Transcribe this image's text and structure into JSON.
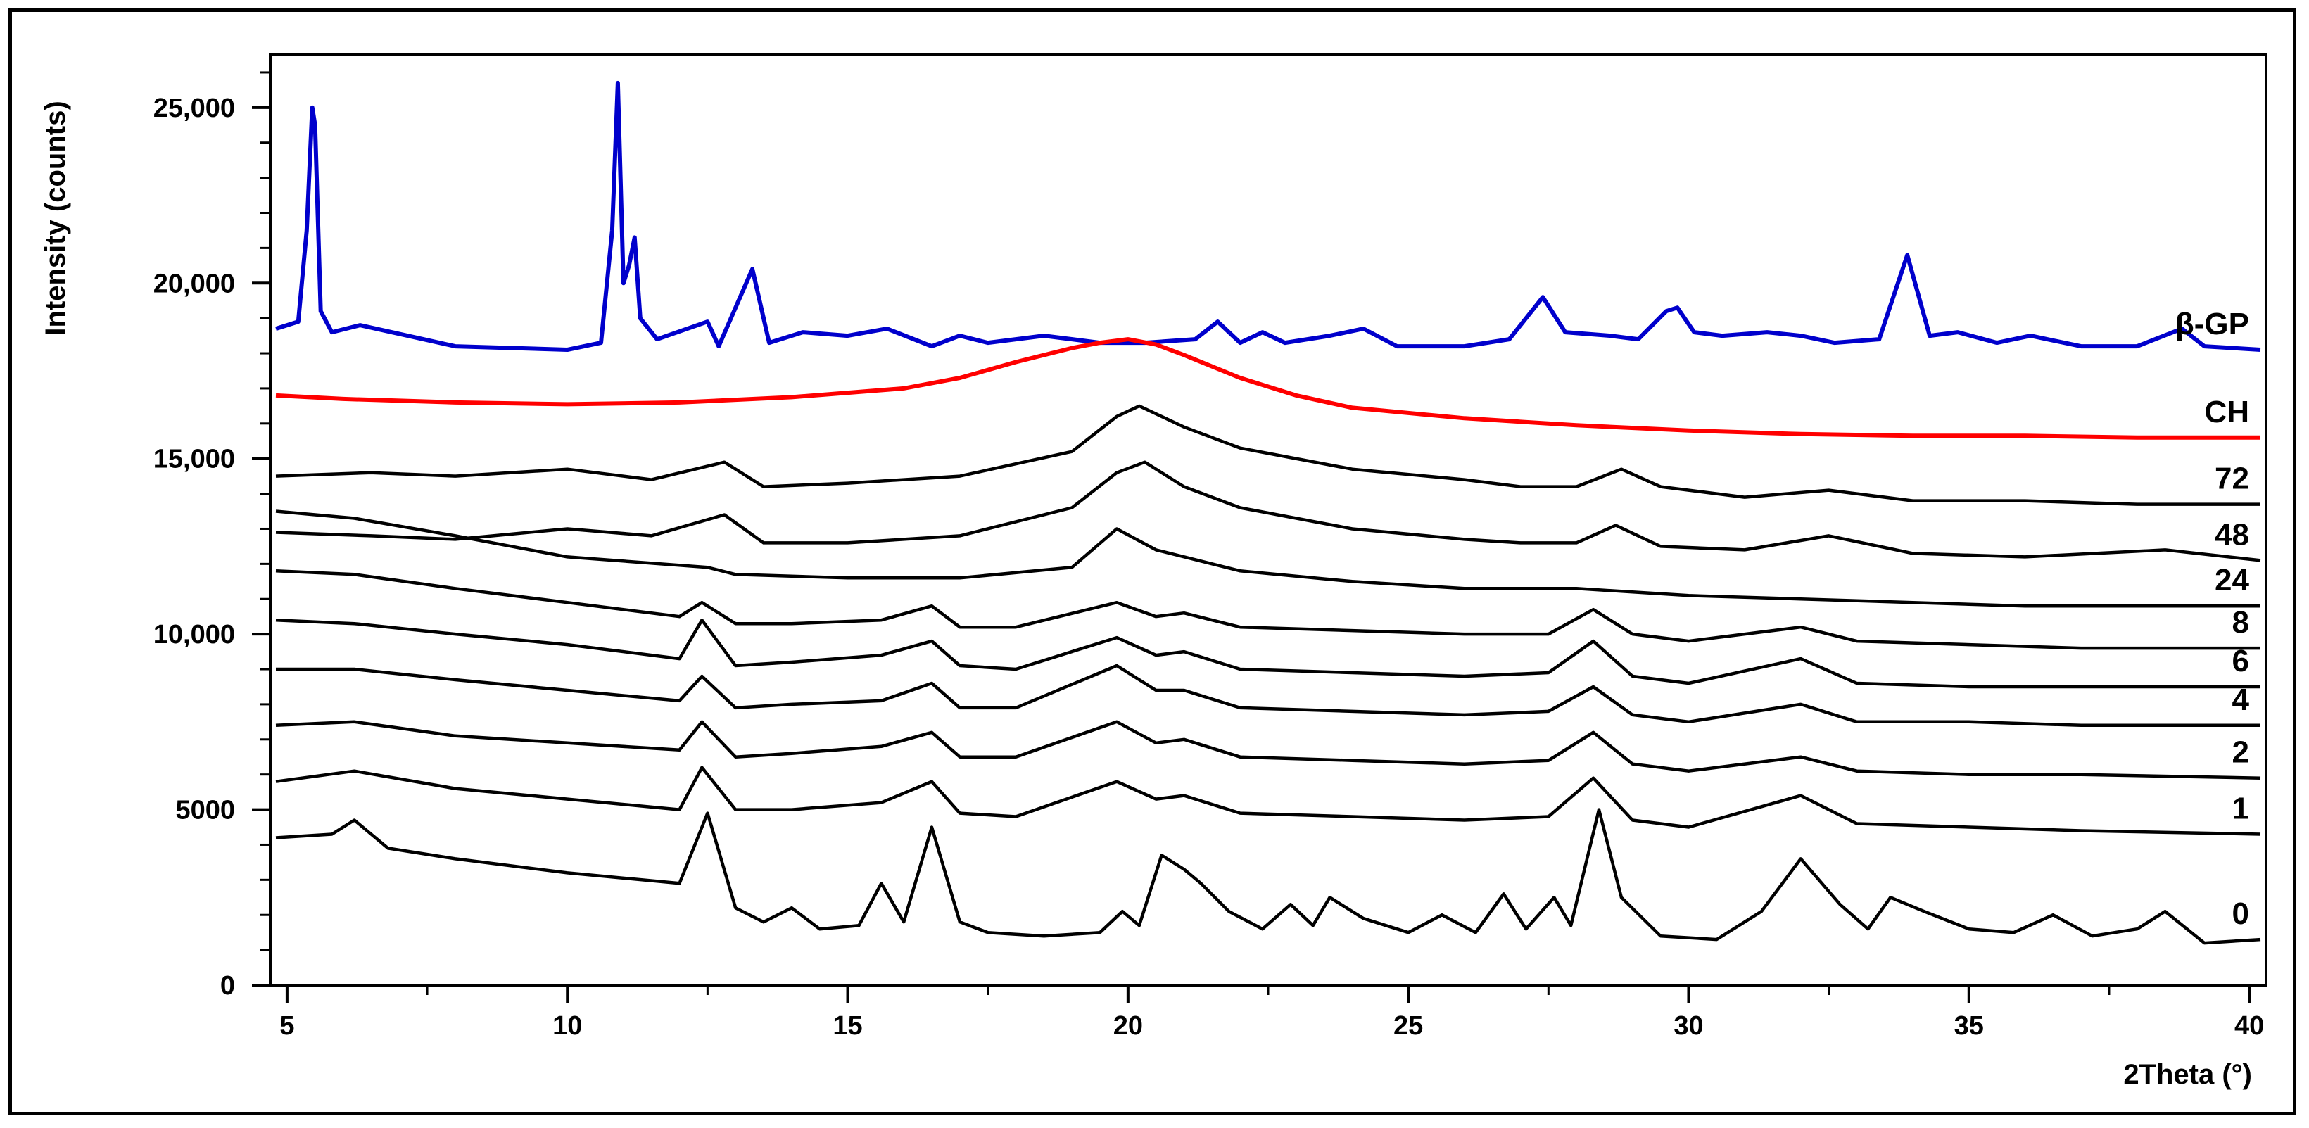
{
  "chart_data": {
    "type": "line",
    "xlabel": "2Theta (°)",
    "ylabel": "Intensity (counts)",
    "xlim": [
      4.7,
      40.3
    ],
    "ylim": [
      0,
      26500
    ],
    "x_ticks": [
      5,
      10,
      15,
      20,
      25,
      30,
      35,
      40
    ],
    "x_tick_labels": [
      "5",
      "10",
      "15",
      "20",
      "25",
      "30",
      "35",
      "40"
    ],
    "y_ticks": [
      0,
      5000,
      10000,
      15000,
      20000,
      25000
    ],
    "y_tick_labels": [
      "0",
      "5000",
      "10,000",
      "15,000",
      "20,000",
      "25,000"
    ],
    "grid": false,
    "legend": "labels at right end of each series",
    "series": [
      {
        "name": "β-GP",
        "color": "#0000cc",
        "x": [
          4.8,
          5.2,
          5.35,
          5.45,
          5.5,
          5.6,
          5.8,
          6.3,
          8,
          10,
          10.6,
          10.8,
          10.9,
          11.0,
          11.1,
          11.2,
          11.3,
          11.6,
          12.5,
          12.7,
          13.3,
          13.6,
          14.2,
          15,
          15.7,
          16.5,
          17.0,
          17.5,
          18.5,
          19.5,
          20.3,
          21.2,
          21.6,
          22.0,
          22.4,
          22.8,
          23.6,
          24.2,
          24.8,
          26,
          26.8,
          27.4,
          27.8,
          28.6,
          29.1,
          29.6,
          29.8,
          30.1,
          30.6,
          31.4,
          32,
          32.6,
          33.4,
          33.9,
          34.3,
          34.8,
          35.5,
          36.1,
          37,
          38,
          38.8,
          39.2,
          40.2
        ],
        "y": [
          18700,
          18900,
          21500,
          25000,
          24500,
          19200,
          18600,
          18800,
          18200,
          18100,
          18300,
          21500,
          25700,
          20000,
          20500,
          21300,
          19000,
          18400,
          18900,
          18200,
          20400,
          18300,
          18600,
          18500,
          18700,
          18200,
          18500,
          18300,
          18500,
          18300,
          18300,
          18400,
          18900,
          18300,
          18600,
          18300,
          18500,
          18700,
          18200,
          18200,
          18400,
          19600,
          18600,
          18500,
          18400,
          19200,
          19300,
          18600,
          18500,
          18600,
          18500,
          18300,
          18400,
          20800,
          18500,
          18600,
          18300,
          18500,
          18200,
          18200,
          18700,
          18200,
          18100
        ]
      },
      {
        "name": "CH",
        "color": "#ff0000",
        "x": [
          4.8,
          6,
          8,
          10,
          12,
          14,
          16,
          17,
          18,
          19,
          19.5,
          20,
          20.5,
          21,
          22,
          23,
          24,
          26,
          28,
          30,
          32,
          34,
          36,
          38,
          40.2
        ],
        "y": [
          16800,
          16700,
          16600,
          16550,
          16600,
          16750,
          17000,
          17300,
          17750,
          18150,
          18300,
          18400,
          18250,
          17950,
          17300,
          16800,
          16450,
          16150,
          15950,
          15800,
          15700,
          15650,
          15650,
          15600,
          15600
        ]
      },
      {
        "name": "72",
        "color": "#000000",
        "x": [
          4.8,
          6.5,
          8,
          10,
          11.5,
          12.8,
          13.5,
          15,
          17,
          19,
          19.8,
          20.2,
          21,
          22,
          24,
          26,
          27,
          28,
          28.8,
          29.5,
          31,
          32.5,
          34,
          36,
          38,
          40.2
        ],
        "y": [
          14500,
          14600,
          14500,
          14700,
          14400,
          14900,
          14200,
          14300,
          14500,
          15200,
          16200,
          16500,
          15900,
          15300,
          14700,
          14400,
          14200,
          14200,
          14700,
          14200,
          13900,
          14100,
          13800,
          13800,
          13700,
          13700
        ]
      },
      {
        "name": "48",
        "color": "#000000",
        "x": [
          4.8,
          6.5,
          8,
          10,
          11.5,
          12.8,
          13.5,
          15,
          17,
          19,
          19.8,
          20.3,
          21,
          22,
          24,
          26,
          27,
          28,
          28.7,
          29.5,
          31,
          32.5,
          34,
          36,
          38.5,
          40.2
        ],
        "y": [
          12900,
          12800,
          12700,
          13000,
          12800,
          13400,
          12600,
          12600,
          12800,
          13600,
          14600,
          14900,
          14200,
          13600,
          13000,
          12700,
          12600,
          12600,
          13100,
          12500,
          12400,
          12800,
          12300,
          12200,
          12400,
          12100
        ]
      },
      {
        "name": "24",
        "color": "#000000",
        "x": [
          4.8,
          6.2,
          8,
          10,
          12.5,
          13,
          15,
          17,
          19,
          19.8,
          20.5,
          22,
          24,
          26,
          28,
          30,
          32,
          34,
          36,
          38,
          40.2
        ],
        "y": [
          13500,
          13300,
          12800,
          12200,
          11900,
          11700,
          11600,
          11600,
          11900,
          13000,
          12400,
          11800,
          11500,
          11300,
          11300,
          11100,
          11000,
          10900,
          10800,
          10800,
          10800
        ]
      },
      {
        "name": "8",
        "color": "#000000",
        "x": [
          4.8,
          6.2,
          8,
          10,
          12,
          12.4,
          13,
          14,
          15.6,
          16.5,
          17,
          18,
          19.8,
          20.5,
          21,
          22,
          24,
          26,
          27.5,
          28.3,
          29,
          30,
          32,
          33,
          35,
          37,
          40.2
        ],
        "y": [
          11800,
          11700,
          11300,
          10900,
          10500,
          10900,
          10300,
          10300,
          10400,
          10800,
          10200,
          10200,
          10900,
          10500,
          10600,
          10200,
          10100,
          10000,
          10000,
          10700,
          10000,
          9800,
          10200,
          9800,
          9700,
          9600,
          9600
        ]
      },
      {
        "name": "6",
        "color": "#000000",
        "x": [
          4.8,
          6.2,
          8,
          10,
          12,
          12.4,
          13,
          14,
          15.6,
          16.5,
          17,
          18,
          19.8,
          20.5,
          21,
          22,
          24,
          26,
          27.5,
          28.3,
          29,
          30,
          32,
          33,
          35,
          37,
          40.2
        ],
        "y": [
          10400,
          10300,
          10000,
          9700,
          9300,
          10400,
          9100,
          9200,
          9400,
          9800,
          9100,
          9000,
          9900,
          9400,
          9500,
          9000,
          8900,
          8800,
          8900,
          9800,
          8800,
          8600,
          9300,
          8600,
          8500,
          8500,
          8500
        ]
      },
      {
        "name": "4",
        "color": "#000000",
        "x": [
          4.8,
          6.2,
          8,
          10,
          12,
          12.4,
          13,
          14,
          15.6,
          16.5,
          17,
          18,
          19.8,
          20.5,
          21,
          22,
          24,
          26,
          27.5,
          28.3,
          29,
          30,
          32,
          33,
          35,
          37,
          40.2
        ],
        "y": [
          9000,
          9000,
          8700,
          8400,
          8100,
          8800,
          7900,
          8000,
          8100,
          8600,
          7900,
          7900,
          9100,
          8400,
          8400,
          7900,
          7800,
          7700,
          7800,
          8500,
          7700,
          7500,
          8000,
          7500,
          7500,
          7400,
          7400
        ]
      },
      {
        "name": "2",
        "color": "#000000",
        "x": [
          4.8,
          6.2,
          8,
          10,
          12,
          12.4,
          13,
          14,
          15.6,
          16.5,
          17,
          18,
          19.8,
          20.5,
          21,
          22,
          24,
          26,
          27.5,
          28.3,
          29,
          30,
          32,
          33,
          35,
          37,
          40.2
        ],
        "y": [
          7400,
          7500,
          7100,
          6900,
          6700,
          7500,
          6500,
          6600,
          6800,
          7200,
          6500,
          6500,
          7500,
          6900,
          7000,
          6500,
          6400,
          6300,
          6400,
          7200,
          6300,
          6100,
          6500,
          6100,
          6000,
          6000,
          5900
        ]
      },
      {
        "name": "1",
        "color": "#000000",
        "x": [
          4.8,
          6.2,
          8,
          10,
          12,
          12.4,
          13,
          14,
          15.6,
          16.5,
          17,
          18,
          19.8,
          20.5,
          21,
          22,
          24,
          26,
          27.5,
          28.3,
          29,
          30,
          32,
          33,
          35,
          37,
          40.2
        ],
        "y": [
          5800,
          6100,
          5600,
          5300,
          5000,
          6200,
          5000,
          5000,
          5200,
          5800,
          4900,
          4800,
          5800,
          5300,
          5400,
          4900,
          4800,
          4700,
          4800,
          5900,
          4700,
          4500,
          5400,
          4600,
          4500,
          4400,
          4300
        ]
      },
      {
        "name": "0",
        "color": "#000000",
        "x": [
          4.8,
          5.8,
          6.2,
          6.8,
          8,
          10,
          12,
          12.5,
          13,
          13.5,
          14,
          14.5,
          15.2,
          15.6,
          16,
          16.5,
          17,
          17.5,
          18.5,
          19.5,
          19.9,
          20.2,
          20.6,
          21,
          21.3,
          21.8,
          22.4,
          22.9,
          23.3,
          23.6,
          24.2,
          25,
          25.6,
          26.2,
          26.7,
          27.1,
          27.6,
          27.9,
          28.4,
          28.8,
          29.5,
          30.5,
          31.3,
          32,
          32.7,
          33.2,
          33.6,
          34.2,
          35,
          35.8,
          36.5,
          37.2,
          38,
          38.5,
          39.2,
          40.2
        ],
        "y": [
          4200,
          4300,
          4700,
          3900,
          3600,
          3200,
          2900,
          4900,
          2200,
          1800,
          2200,
          1600,
          1700,
          2900,
          1800,
          4500,
          1800,
          1500,
          1400,
          1500,
          2100,
          1700,
          3700,
          3300,
          2900,
          2100,
          1600,
          2300,
          1700,
          2500,
          1900,
          1500,
          2000,
          1500,
          2600,
          1600,
          2500,
          1700,
          5000,
          2500,
          1400,
          1300,
          2100,
          3600,
          2300,
          1600,
          2500,
          2100,
          1600,
          1500,
          2000,
          1400,
          1600,
          2100,
          1200,
          1300
        ]
      }
    ]
  }
}
